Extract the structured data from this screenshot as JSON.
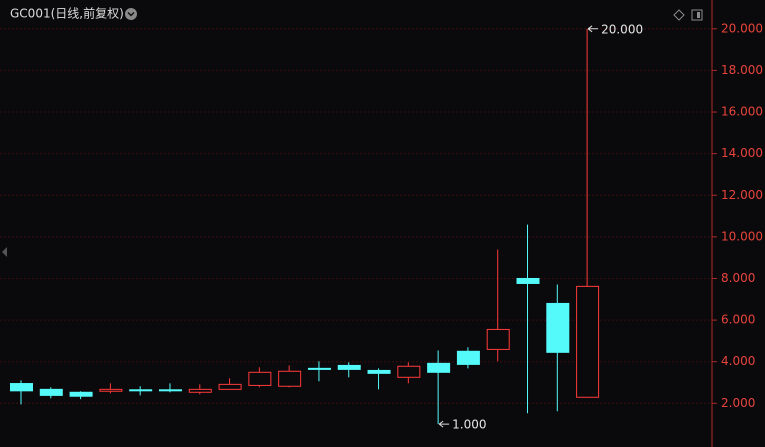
{
  "chart_data": {
    "type": "candlestick",
    "title": "GC001(日线,前复权)",
    "open": [
      2.95,
      2.67,
      2.53,
      2.58,
      2.65,
      2.65,
      2.53,
      2.67,
      2.86,
      2.82,
      3.68,
      3.82,
      3.58,
      3.25,
      3.92,
      4.5,
      4.59,
      8.0,
      6.8,
      2.29
    ],
    "high": [
      3.1,
      2.77,
      2.58,
      2.96,
      2.82,
      2.96,
      2.91,
      3.2,
      3.73,
      3.82,
      4.02,
      3.97,
      3.68,
      3.97,
      4.54,
      4.69,
      9.39,
      10.59,
      7.71,
      20.0
    ],
    "low": [
      1.95,
      2.24,
      2.2,
      2.48,
      2.38,
      2.53,
      2.43,
      2.67,
      2.77,
      2.77,
      3.06,
      3.25,
      2.67,
      2.96,
      1.0,
      3.68,
      4.02,
      1.52,
      1.62,
      2.29
    ],
    "close": [
      2.6,
      2.38,
      2.34,
      2.67,
      2.6,
      2.6,
      2.67,
      2.91,
      3.49,
      3.54,
      3.63,
      3.63,
      3.44,
      3.78,
      3.49,
      3.87,
      5.55,
      7.76,
      4.45,
      7.62
    ],
    "up_color": "#ff3a3a",
    "down_color": "#54fafa",
    "ylim": [
      -0.1,
      21
    ],
    "yticks": [
      {
        "value": 2,
        "label": "2.000"
      },
      {
        "value": 4,
        "label": "4.000"
      },
      {
        "value": 6,
        "label": "6.000"
      },
      {
        "value": 8,
        "label": "8.000"
      },
      {
        "value": 10,
        "label": "10.000"
      },
      {
        "value": 12,
        "label": "12.000"
      },
      {
        "value": 14,
        "label": "14.000"
      },
      {
        "value": 16,
        "label": "16.000"
      },
      {
        "value": 18,
        "label": "18.000"
      },
      {
        "value": 20,
        "label": "20.000"
      }
    ],
    "grid": true,
    "max_label": "20.000",
    "min_label": "1.000"
  }
}
